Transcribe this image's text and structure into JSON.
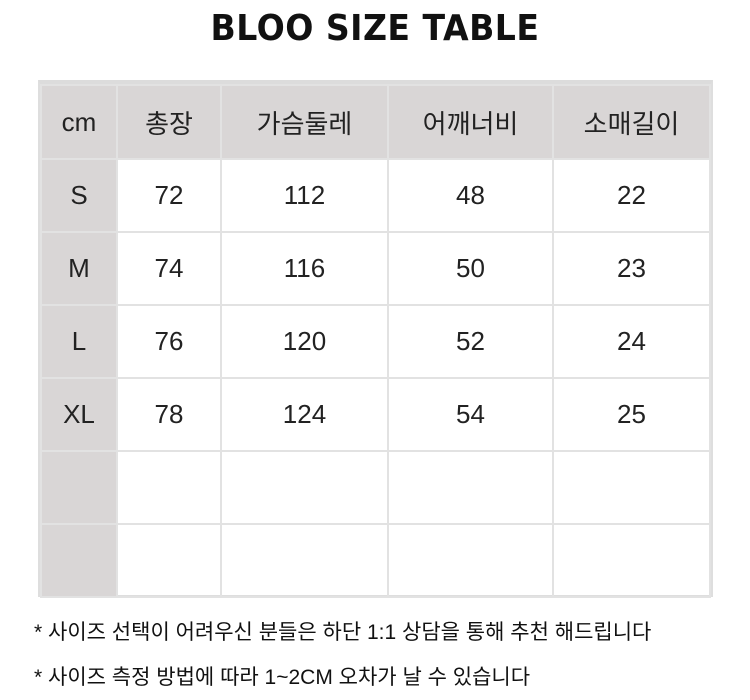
{
  "title": "BLOO SIZE TABLE",
  "table": {
    "headers": [
      "cm",
      "총장",
      "가슴둘레",
      "어깨너비",
      "소매길이"
    ],
    "rows": [
      [
        "S",
        "72",
        "112",
        "48",
        "22"
      ],
      [
        "M",
        "74",
        "116",
        "50",
        "23"
      ],
      [
        "L",
        "76",
        "120",
        "52",
        "24"
      ],
      [
        "XL",
        "78",
        "124",
        "54",
        "25"
      ],
      [
        "",
        "",
        "",
        "",
        ""
      ],
      [
        "",
        "",
        "",
        "",
        ""
      ]
    ]
  },
  "notes": [
    "* 사이즈 선택이 어려우신 분들은 하단 1:1 상담을 통해 추천 해드립니다",
    "* 사이즈 측정 방법에 따라 1~2CM 오차가 날 수 있습니다"
  ],
  "colors": {
    "header_bg": "#d9d6d6",
    "border": "#e2e2e2"
  }
}
